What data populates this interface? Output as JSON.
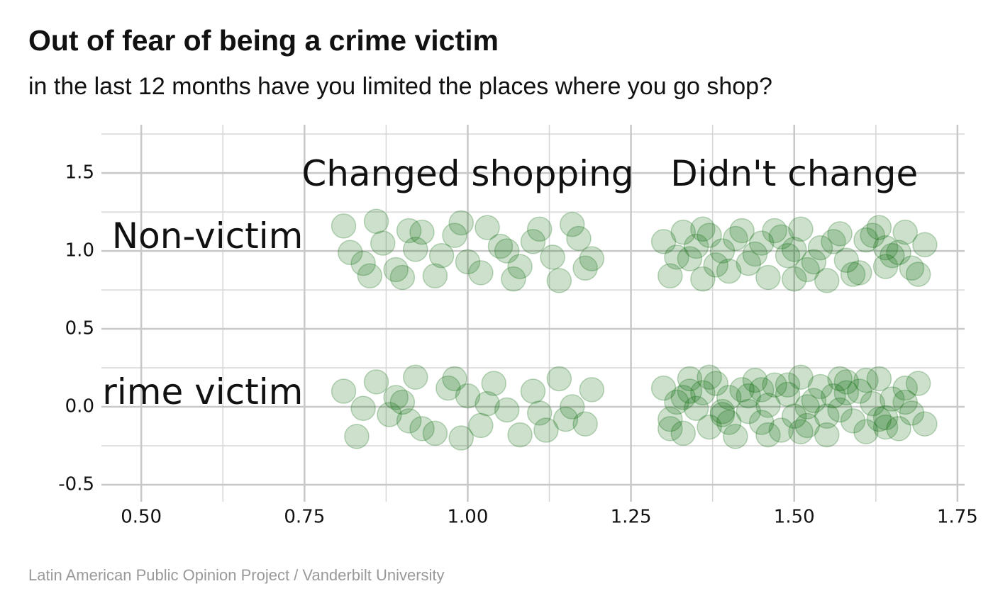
{
  "chart_data": {
    "type": "scatter",
    "title": "Out of fear of being a crime victim",
    "subtitle": "in the last 12 months have you limited the places where you go shop?",
    "caption": "Latin American Public Opinion Project / Vanderbilt University",
    "color": "#006400",
    "grid": true,
    "xlim": [
      0.439,
      1.761
    ],
    "ylim": [
      -0.609,
      1.755
    ],
    "xticks": [
      {
        "value": 0.5,
        "label": "0.50"
      },
      0.75,
      {
        "value": 1.0,
        "label": "1.00"
      },
      1.25,
      {
        "value": 1.5,
        "label": "1.50"
      },
      1.75
    ],
    "yticks": [
      -0.5,
      {
        "value": 0.0,
        "label": "0.0"
      },
      0.5,
      {
        "value": 1.0,
        "label": "1.0"
      },
      1.5
    ],
    "annotations": [
      {
        "text": "Changed shopping",
        "x": 1.0,
        "y": 1.48
      },
      {
        "text": "Didn't change",
        "x": 1.5,
        "y": 1.48
      },
      {
        "text": "Non-victim",
        "x": 0.75,
        "y": 1.08
      },
      {
        "text": "Crime victim",
        "x": 0.75,
        "y": 0.08
      }
    ],
    "x": [
      0.81,
      0.84,
      0.87,
      0.9,
      0.93,
      0.96,
      0.99,
      1.02,
      1.05,
      1.08,
      1.11,
      1.14,
      1.17,
      1.19,
      0.82,
      0.86,
      0.89,
      0.92,
      0.95,
      0.98,
      1.0,
      1.03,
      1.07,
      1.1,
      1.13,
      1.16,
      1.18,
      0.85,
      0.91,
      1.06,
      0.81,
      0.83,
      0.86,
      0.88,
      0.9,
      0.91,
      0.92,
      0.95,
      0.97,
      0.99,
      1.0,
      1.02,
      1.04,
      1.06,
      1.08,
      1.1,
      1.12,
      1.14,
      1.16,
      1.18,
      1.19,
      0.84,
      0.89,
      0.93,
      0.98,
      1.03,
      1.11,
      1.15,
      1.3,
      1.31,
      1.33,
      1.34,
      1.36,
      1.37,
      1.39,
      1.4,
      1.42,
      1.43,
      1.45,
      1.46,
      1.48,
      1.49,
      1.51,
      1.52,
      1.54,
      1.55,
      1.57,
      1.58,
      1.6,
      1.61,
      1.63,
      1.64,
      1.66,
      1.67,
      1.69,
      1.7,
      1.32,
      1.35,
      1.38,
      1.41,
      1.44,
      1.47,
      1.5,
      1.53,
      1.56,
      1.59,
      1.62,
      1.65,
      1.68,
      1.36,
      1.5,
      1.64,
      1.3,
      1.31,
      1.32,
      1.33,
      1.34,
      1.35,
      1.36,
      1.37,
      1.38,
      1.39,
      1.4,
      1.41,
      1.42,
      1.43,
      1.44,
      1.45,
      1.46,
      1.47,
      1.48,
      1.49,
      1.5,
      1.51,
      1.52,
      1.53,
      1.54,
      1.55,
      1.56,
      1.57,
      1.58,
      1.59,
      1.6,
      1.61,
      1.62,
      1.63,
      1.64,
      1.65,
      1.66,
      1.67,
      1.68,
      1.69,
      1.7,
      1.31,
      1.34,
      1.37,
      1.4,
      1.43,
      1.46,
      1.49,
      1.52,
      1.55,
      1.58,
      1.61,
      1.64,
      1.67,
      1.33,
      1.39,
      1.45,
      1.51,
      1.57,
      1.63
    ],
    "y": [
      1.16,
      0.92,
      1.05,
      0.83,
      1.12,
      0.97,
      1.18,
      0.86,
      1.03,
      0.9,
      1.14,
      0.81,
      1.08,
      0.95,
      0.99,
      1.19,
      0.88,
      1.01,
      0.84,
      1.1,
      0.93,
      1.15,
      0.82,
      1.06,
      0.96,
      1.17,
      0.89,
      0.84,
      1.13,
      1.0,
      0.1,
      -0.19,
      0.16,
      -0.05,
      0.03,
      -0.09,
      0.19,
      -0.17,
      0.12,
      -0.2,
      0.07,
      -0.12,
      0.15,
      -0.02,
      -0.18,
      0.1,
      -0.15,
      0.18,
      0.0,
      -0.11,
      0.11,
      -0.01,
      0.06,
      -0.14,
      0.18,
      0.02,
      -0.04,
      -0.08,
      1.06,
      0.84,
      1.12,
      0.95,
      0.82,
      1.1,
      1.0,
      0.87,
      1.13,
      0.92,
      1.05,
      0.83,
      1.09,
      0.97,
      1.14,
      0.88,
      1.02,
      0.81,
      1.11,
      0.94,
      0.86,
      1.07,
      1.15,
      0.9,
      0.99,
      1.12,
      0.85,
      1.04,
      0.96,
      1.03,
      0.91,
      1.08,
      0.98,
      1.13,
      1.01,
      0.93,
      1.06,
      0.85,
      1.1,
      0.97,
      0.89,
      1.14,
      0.82,
      1.02,
      0.12,
      -0.08,
      0.03,
      -0.17,
      0.18,
      -0.01,
      0.09,
      -0.13,
      0.15,
      -0.05,
      0.06,
      -0.19,
      0.11,
      -0.03,
      0.17,
      -0.1,
      0.01,
      0.14,
      -0.15,
      0.08,
      -0.06,
      0.19,
      -0.12,
      0.04,
      0.13,
      -0.18,
      0.07,
      -0.02,
      0.16,
      -0.09,
      0.1,
      -0.16,
      0.02,
      0.18,
      -0.07,
      0.05,
      -0.14,
      0.12,
      -0.04,
      0.15,
      -0.11,
      -0.14,
      0.1,
      0.19,
      -0.1,
      0.07,
      -0.18,
      0.14,
      0.0,
      -0.06,
      0.09,
      0.17,
      -0.13,
      0.03,
      0.06,
      -0.03,
      0.11,
      -0.16,
      0.18,
      -0.08
    ]
  }
}
